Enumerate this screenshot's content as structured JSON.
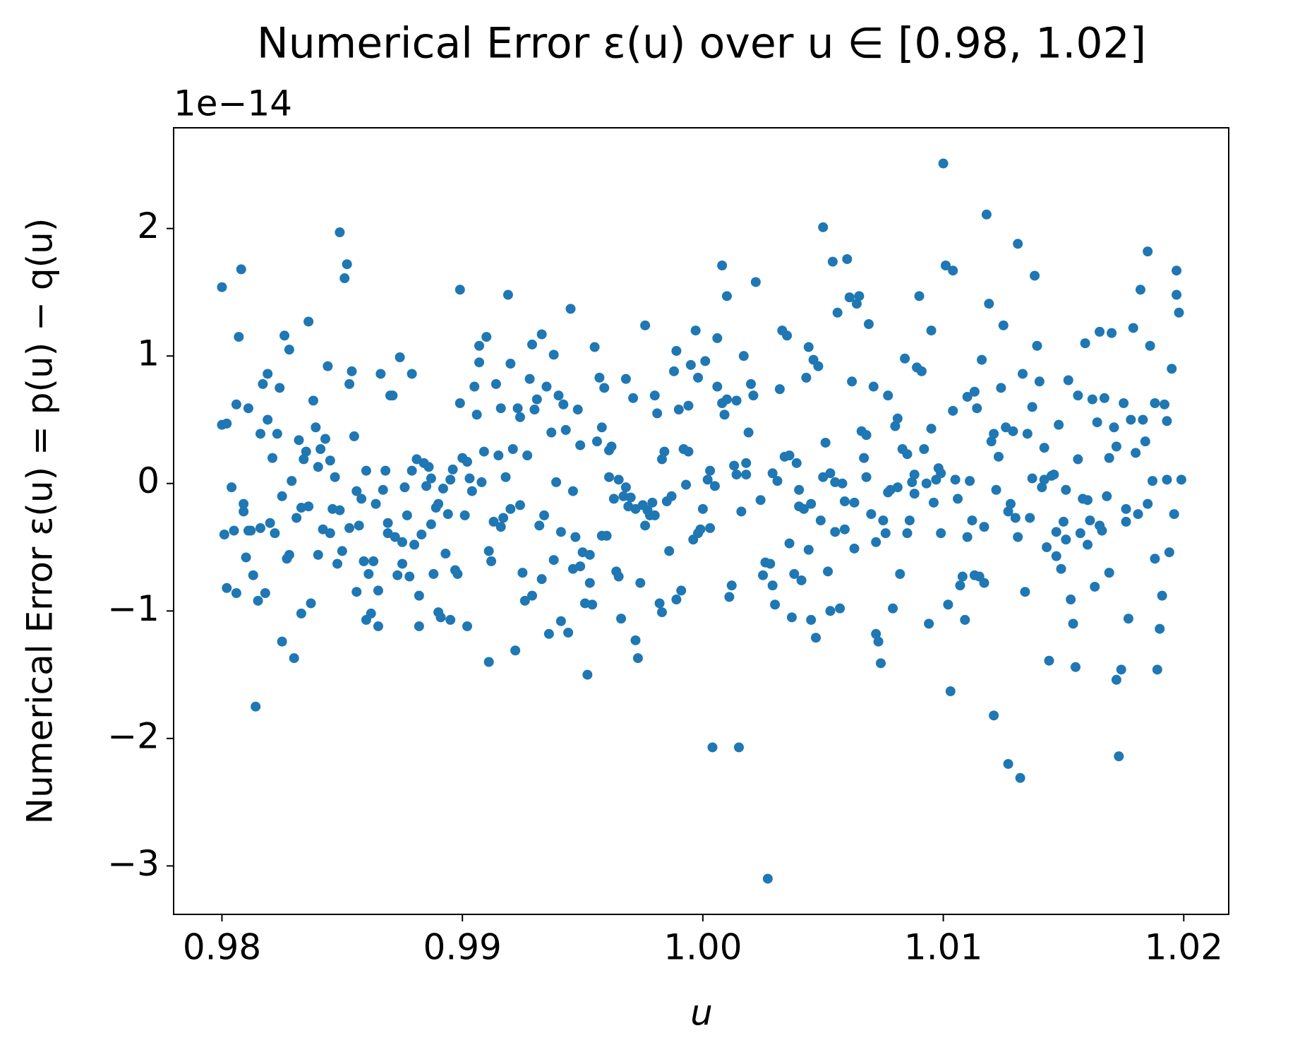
{
  "chart_data": {
    "type": "scatter",
    "title": "Numerical Error ε(u) over u ∈ [0.98, 1.02]",
    "xlabel": "u",
    "ylabel": "Numerical Error ε(u) = p(u) − q(u)",
    "y_offset_label": "1e−14",
    "color": "#1f77b4",
    "xlim": [
      0.97799,
      1.02187
    ],
    "ylim": [
      -3.38,
      2.79
    ],
    "xticks": [
      0.98,
      0.99,
      {
        "value": 1,
        "label": "1.00"
      },
      1.01,
      1.02
    ],
    "yticks": [
      {
        "value": -3,
        "label": "−3"
      },
      {
        "value": -2,
        "label": "−2"
      },
      {
        "value": -1,
        "label": "−1"
      },
      0,
      1,
      2
    ],
    "x": [
      0.98,
      0.98,
      0.9801,
      0.9802,
      0.9802,
      0.9804,
      0.9805,
      0.9806,
      0.9806,
      0.9807,
      0.9808,
      0.9809,
      0.9809,
      0.981,
      0.9811,
      0.9811,
      0.9812,
      0.9813,
      0.9814,
      0.9815,
      0.9816,
      0.9816,
      0.9817,
      0.9818,
      0.9819,
      0.9819,
      0.982,
      0.9821,
      0.9822,
      0.9823,
      0.9824,
      0.9825,
      0.9825,
      0.9826,
      0.9827,
      0.9828,
      0.9828,
      0.9829,
      0.983,
      0.9831,
      0.9832,
      0.9833,
      0.9833,
      0.9834,
      0.9835,
      0.9836,
      0.9836,
      0.9837,
      0.9838,
      0.9839,
      0.984,
      0.984,
      0.9841,
      0.9842,
      0.9843,
      0.9844,
      0.9845,
      0.9845,
      0.9846,
      0.9847,
      0.9848,
      0.9849,
      0.9849,
      0.985,
      0.9851,
      0.9852,
      0.9853,
      0.9853,
      0.9854,
      0.9855,
      0.9856,
      0.9856,
      0.9857,
      0.9858,
      0.9859,
      0.986,
      0.986,
      0.9861,
      0.9862,
      0.9863,
      0.9864,
      0.9865,
      0.9865,
      0.9866,
      0.9867,
      0.9868,
      0.9869,
      0.9869,
      0.987,
      0.9871,
      0.9872,
      0.9873,
      0.9874,
      0.9875,
      0.9875,
      0.9876,
      0.9877,
      0.9878,
      0.9879,
      0.9879,
      0.988,
      0.9881,
      0.9882,
      0.9882,
      0.9883,
      0.9884,
      0.9885,
      0.9886,
      0.9887,
      0.9887,
      0.9888,
      0.9889,
      0.989,
      0.989,
      0.9891,
      0.9892,
      0.9893,
      0.9894,
      0.9895,
      0.9895,
      0.9896,
      0.9897,
      0.9898,
      0.9899,
      0.9899,
      0.99,
      0.9901,
      0.9902,
      0.9902,
      0.9903,
      0.9904,
      0.9905,
      0.9906,
      0.9907,
      0.9907,
      0.9908,
      0.9909,
      0.991,
      0.9911,
      0.9911,
      0.9912,
      0.9913,
      0.9914,
      0.9915,
      0.9916,
      0.9916,
      0.9917,
      0.9918,
      0.9919,
      0.992,
      0.992,
      0.9921,
      0.9922,
      0.9923,
      0.9924,
      0.9924,
      0.9925,
      0.9926,
      0.9927,
      0.9928,
      0.9929,
      0.9929,
      0.993,
      0.9931,
      0.9932,
      0.9933,
      0.9933,
      0.9934,
      0.9935,
      0.9936,
      0.9937,
      0.9938,
      0.9938,
      0.9939,
      0.994,
      0.9941,
      0.9941,
      0.9942,
      0.9943,
      0.9944,
      0.9945,
      0.9946,
      0.9946,
      0.9947,
      0.9948,
      0.9949,
      0.9949,
      0.995,
      0.9951,
      0.9952,
      0.9953,
      0.9953,
      0.9954,
      0.9955,
      0.9956,
      0.9957,
      0.9958,
      0.9958,
      0.9959,
      0.996,
      0.9961,
      0.9961,
      0.9962,
      0.9963,
      0.9964,
      0.9965,
      0.9965,
      0.9966,
      0.9967,
      0.9968,
      0.9968,
      0.9969,
      0.997,
      0.9971,
      0.9972,
      0.9972,
      0.9973,
      0.9974,
      0.9975,
      0.9976,
      0.9976,
      0.9977,
      0.9978,
      0.9979,
      0.998,
      0.998,
      0.9981,
      0.9982,
      0.9983,
      0.9983,
      0.9984,
      0.9985,
      0.9986,
      0.9987,
      0.9988,
      0.9989,
      0.9989,
      0.999,
      0.9991,
      0.9992,
      0.9993,
      0.9994,
      0.9994,
      0.9995,
      0.9996,
      0.9997,
      0.9998,
      0.9998,
      0.9999,
      1.0,
      1.0001,
      1.0002,
      1.0003,
      1.0003,
      1.0004,
      1.0005,
      1.0006,
      1.0006,
      1.0008,
      1.0008,
      1.0009,
      1.001,
      1.001,
      1.0011,
      1.0012,
      1.0013,
      1.0014,
      1.0014,
      1.0015,
      1.0016,
      1.0017,
      1.0018,
      1.0018,
      1.0019,
      1.002,
      1.0021,
      1.0022,
      1.0024,
      1.0025,
      1.0026,
      1.0027,
      1.0028,
      1.0029,
      1.0029,
      1.003,
      1.0031,
      1.0032,
      1.0033,
      1.0034,
      1.0035,
      1.0036,
      1.0036,
      1.0037,
      1.0038,
      1.0039,
      1.004,
      1.004,
      1.0041,
      1.0042,
      1.0043,
      1.0044,
      1.0044,
      1.0045,
      1.0045,
      1.0046,
      1.0047,
      1.0048,
      1.0049,
      1.005,
      1.005,
      1.0051,
      1.0052,
      1.0053,
      1.0053,
      1.0054,
      1.0055,
      1.0055,
      1.0056,
      1.0057,
      1.0058,
      1.0059,
      1.0059,
      1.006,
      1.0061,
      1.0062,
      1.0063,
      1.0063,
      1.0064,
      1.0065,
      1.0066,
      1.0067,
      1.0068,
      1.0068,
      1.0069,
      1.007,
      1.0071,
      1.0072,
      1.0072,
      1.0073,
      1.0074,
      1.0075,
      1.0076,
      1.0077,
      1.0077,
      1.0078,
      1.0079,
      1.008,
      1.0081,
      1.0081,
      1.0082,
      1.0083,
      1.0084,
      1.0085,
      1.0085,
      1.0086,
      1.0087,
      1.0088,
      1.0088,
      1.0089,
      1.009,
      1.0091,
      1.0092,
      1.0093,
      1.0094,
      1.0095,
      1.0095,
      1.0096,
      1.0097,
      1.0098,
      1.0099,
      1.0099,
      1.01,
      1.0101,
      1.0102,
      1.0103,
      1.0104,
      1.0104,
      1.0105,
      1.0106,
      1.0107,
      1.0108,
      1.0109,
      1.011,
      1.011,
      1.0111,
      1.0112,
      1.0113,
      1.0113,
      1.0114,
      1.0115,
      1.0116,
      1.0117,
      1.0117,
      1.0118,
      1.0119,
      1.012,
      1.0121,
      1.0121,
      1.0122,
      1.0123,
      1.0124,
      1.0125,
      1.0126,
      1.0127,
      1.0127,
      1.0128,
      1.0129,
      1.013,
      1.0131,
      1.0131,
      1.0132,
      1.0133,
      1.0134,
      1.0135,
      1.0136,
      1.0137,
      1.0137,
      1.0138,
      1.0139,
      1.014,
      1.0141,
      1.0142,
      1.0142,
      1.0143,
      1.0144,
      1.0145,
      1.0146,
      1.0147,
      1.0147,
      1.0148,
      1.0149,
      1.015,
      1.0151,
      1.0151,
      1.0152,
      1.0153,
      1.0154,
      1.0155,
      1.0156,
      1.0156,
      1.0157,
      1.0158,
      1.0159,
      1.016,
      1.016,
      1.0161,
      1.0162,
      1.0163,
      1.0164,
      1.0165,
      1.0165,
      1.0166,
      1.0167,
      1.0168,
      1.0169,
      1.0169,
      1.017,
      1.0171,
      1.0172,
      1.0172,
      1.0173,
      1.0174,
      1.0175,
      1.0176,
      1.0176,
      1.0177,
      1.0178,
      1.0179,
      1.018,
      1.0181,
      1.0182,
      1.0183,
      1.0184,
      1.0185,
      1.0185,
      1.0186,
      1.0187,
      1.0188,
      1.0188,
      1.0189,
      1.019,
      1.0191,
      1.0192,
      1.0193,
      1.0193,
      1.0194,
      1.0195,
      1.0196,
      1.0197,
      1.0197,
      1.0198,
      1.0199
    ],
    "values": [
      1.54,
      0.46,
      -0.4,
      0.47,
      -0.82,
      -0.03,
      -0.37,
      -0.86,
      0.62,
      1.15,
      1.68,
      -0.22,
      -0.16,
      -0.58,
      -0.37,
      0.59,
      -0.37,
      -0.72,
      -1.75,
      -0.92,
      -0.35,
      0.39,
      0.78,
      -0.86,
      0.5,
      0.86,
      -0.31,
      0.2,
      -0.39,
      0.39,
      0.75,
      -1.24,
      -0.1,
      1.16,
      -0.59,
      -0.56,
      1.05,
      0.02,
      -1.37,
      -0.27,
      0.34,
      -0.19,
      -1.02,
      0.19,
      0.25,
      -0.18,
      1.27,
      -0.94,
      0.65,
      0.44,
      0.13,
      -0.56,
      0.27,
      -0.36,
      0.35,
      0.92,
      -0.39,
      0.18,
      -0.2,
      0.05,
      -0.63,
      1.97,
      -0.21,
      -0.53,
      1.61,
      1.72,
      0.78,
      -0.35,
      0.88,
      0.37,
      -0.85,
      -0.06,
      -0.33,
      -0.12,
      -0.61,
      0.1,
      -1.07,
      -0.71,
      -1.02,
      -0.61,
      -0.16,
      -0.84,
      -1.12,
      0.86,
      -0.05,
      0.1,
      -0.39,
      -0.31,
      0.69,
      0.69,
      -0.42,
      -0.72,
      0.99,
      -0.46,
      -0.63,
      -0.03,
      -0.25,
      -0.73,
      0.1,
      0.86,
      -0.48,
      0.19,
      -0.88,
      -1.12,
      -0.4,
      0.16,
      -0.02,
      0.13,
      -0.32,
      0.04,
      -0.71,
      -0.19,
      -0.16,
      -1.01,
      -1.05,
      -0.04,
      -0.55,
      -0.24,
      -1.07,
      0.03,
      0.11,
      -0.68,
      -0.71,
      0.63,
      1.52,
      0.2,
      -0.25,
      -1.12,
      0.17,
      0.04,
      -0.06,
      0.76,
      0.54,
      0.95,
      1.08,
      0.01,
      0.25,
      1.15,
      -0.53,
      -1.4,
      -0.61,
      -0.3,
      0.78,
      0.22,
      0.59,
      -0.34,
      -0.27,
      0.05,
      1.48,
      0.94,
      -0.2,
      0.27,
      -1.31,
      0.59,
      0.52,
      -0.17,
      -0.7,
      -0.92,
      0.22,
      0.82,
      1.09,
      -0.88,
      0.58,
      0.66,
      -0.33,
      1.17,
      -0.75,
      -0.25,
      0.76,
      -1.18,
      0.4,
      1.01,
      -0.6,
      0.01,
      0.69,
      -0.38,
      -1.08,
      0.62,
      0.42,
      -1.17,
      1.37,
      -0.06,
      -0.67,
      -0.42,
      0.58,
      0.3,
      -0.65,
      -0.54,
      -0.94,
      -1.5,
      -0.56,
      -0.78,
      -0.95,
      1.07,
      0.33,
      0.83,
      0.44,
      -0.41,
      0.75,
      -0.41,
      0.05,
      0.26,
      0.29,
      -0.12,
      -0.69,
      0.03,
      -0.73,
      -1.06,
      -0.1,
      0.82,
      -0.03,
      -0.18,
      -0.11,
      0.67,
      -1.23,
      -0.2,
      -1.37,
      -0.78,
      -0.17,
      -0.33,
      1.24,
      -0.21,
      -0.25,
      -0.15,
      0.69,
      -0.25,
      0.55,
      -0.94,
      0.19,
      -1.01,
      0.25,
      -0.14,
      -0.53,
      -0.1,
      0.88,
      -0.91,
      1.04,
      0.58,
      -0.84,
      0.27,
      -0.01,
      0.61,
      0.25,
      0.93,
      -0.44,
      1.2,
      -0.39,
      0.83,
      -0.36,
      -0.2,
      0.96,
      0.03,
      0.1,
      -0.35,
      -2.07,
      -0.02,
      1.14,
      0.76,
      1.71,
      0.63,
      0.54,
      1.47,
      0.66,
      -0.89,
      -0.8,
      0.14,
      0.07,
      0.65,
      -2.07,
      -0.22,
      1.0,
      0.07,
      0.16,
      0.4,
      0.78,
      0.69,
      1.58,
      -0.13,
      -0.72,
      -0.62,
      -3.1,
      -0.63,
      0.08,
      -0.8,
      -0.95,
      0.02,
      0.74,
      1.2,
      0.21,
      1.16,
      0.22,
      -0.47,
      -1.05,
      -0.71,
      0.16,
      -0.18,
      -0.05,
      -0.76,
      -0.2,
      0.83,
      1.07,
      -0.52,
      -1.07,
      -0.16,
      0.97,
      -1.21,
      0.92,
      -0.29,
      2.01,
      0.05,
      0.32,
      -0.69,
      0.08,
      -1.0,
      1.74,
      0.01,
      -0.38,
      1.34,
      -0.98,
      0.0,
      -0.36,
      -0.14,
      1.76,
      1.46,
      0.8,
      -0.51,
      -0.15,
      1.41,
      1.47,
      0.41,
      0.2,
      0.05,
      0.38,
      1.25,
      -0.24,
      0.76,
      -1.18,
      -0.46,
      -1.24,
      -1.41,
      -0.29,
      -0.39,
      -0.07,
      0.69,
      -0.05,
      -0.98,
      0.45,
      -0.03,
      0.51,
      -0.71,
      0.27,
      0.98,
      0.23,
      -0.39,
      -0.29,
      0.01,
      0.07,
      -0.08,
      0.91,
      1.47,
      0.88,
      0.27,
      0.0,
      -1.1,
      1.2,
      0.43,
      -0.15,
      0.03,
      0.12,
      0.08,
      -0.39,
      2.51,
      1.71,
      -0.95,
      -1.63,
      1.67,
      0.57,
      0.03,
      -0.12,
      -0.8,
      -0.73,
      -1.07,
      0.68,
      -0.42,
      0.02,
      -0.29,
      -0.72,
      0.72,
      0.59,
      -0.73,
      0.97,
      -0.78,
      -0.34,
      2.11,
      1.41,
      0.33,
      0.39,
      -1.82,
      -0.05,
      0.21,
      0.75,
      1.24,
      0.44,
      -2.2,
      -0.22,
      -0.16,
      0.41,
      -0.27,
      -0.42,
      1.88,
      -2.31,
      0.86,
      -0.85,
      0.39,
      -0.27,
      0.04,
      0.6,
      1.63,
      1.08,
      0.8,
      -0.03,
      0.28,
      0.03,
      -0.5,
      -1.39,
      0.06,
      0.07,
      -0.38,
      -0.57,
      0.46,
      -0.67,
      -0.3,
      -0.44,
      -0.05,
      0.81,
      -0.91,
      -1.1,
      -1.44,
      0.69,
      0.19,
      -0.39,
      -0.12,
      1.1,
      -0.13,
      -0.48,
      -0.29,
      0.66,
      -0.81,
      0.48,
      1.19,
      -0.33,
      -0.37,
      0.67,
      -0.1,
      -0.7,
      0.2,
      1.18,
      0.44,
      0.29,
      -1.54,
      -2.14,
      -1.46,
      0.63,
      -0.3,
      -0.2,
      -1.06,
      0.5,
      1.22,
      0.24,
      -0.24,
      1.52,
      0.5,
      0.33,
      -0.16,
      1.82,
      1.08,
      0.02,
      0.63,
      -0.59,
      -1.46,
      -1.14,
      -0.88,
      0.62,
      0.03,
      0.49,
      -0.54,
      0.9,
      -0.24,
      1.48,
      1.67,
      1.34,
      0.03
    ]
  }
}
